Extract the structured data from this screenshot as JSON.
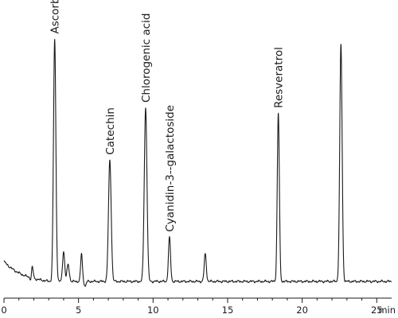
{
  "chart_data": {
    "type": "line",
    "xlabel": "min",
    "xlim": [
      0,
      26
    ],
    "ylim": [
      0,
      1
    ],
    "ticks": [
      0,
      5,
      10,
      15,
      20,
      25
    ],
    "tick_labels": [
      "0",
      "5",
      "10",
      "15",
      "20",
      "25"
    ],
    "grid": false,
    "series": [
      {
        "peaks": [
          {
            "time": 1.9,
            "height": 0.04,
            "width": 0.06
          },
          {
            "time": 3.4,
            "height": 0.88,
            "width": 0.08
          },
          {
            "time": 4.0,
            "height": 0.11,
            "width": 0.07
          },
          {
            "time": 4.3,
            "height": 0.06,
            "width": 0.08
          },
          {
            "time": 5.2,
            "height": 0.1,
            "width": 0.06
          },
          {
            "time": 7.1,
            "height": 0.44,
            "width": 0.09
          },
          {
            "time": 9.5,
            "height": 0.63,
            "width": 0.09
          },
          {
            "time": 11.1,
            "height": 0.16,
            "width": 0.07
          },
          {
            "time": 13.5,
            "height": 0.1,
            "width": 0.07
          },
          {
            "time": 18.4,
            "height": 0.61,
            "width": 0.07
          },
          {
            "time": 22.6,
            "height": 0.86,
            "width": 0.08
          }
        ]
      }
    ],
    "annotations": [
      {
        "text": "Ascorbic acid",
        "time": 3.4,
        "height": 0.88
      },
      {
        "text": "Catechin",
        "time": 7.1,
        "height": 0.44
      },
      {
        "text": "Chlorogenic acid",
        "time": 9.5,
        "height": 0.63
      },
      {
        "text": "Cyanidin-3--galactoside",
        "time": 11.1,
        "height": 0.16
      },
      {
        "text": "Resveratrol",
        "time": 18.4,
        "height": 0.61
      }
    ]
  }
}
